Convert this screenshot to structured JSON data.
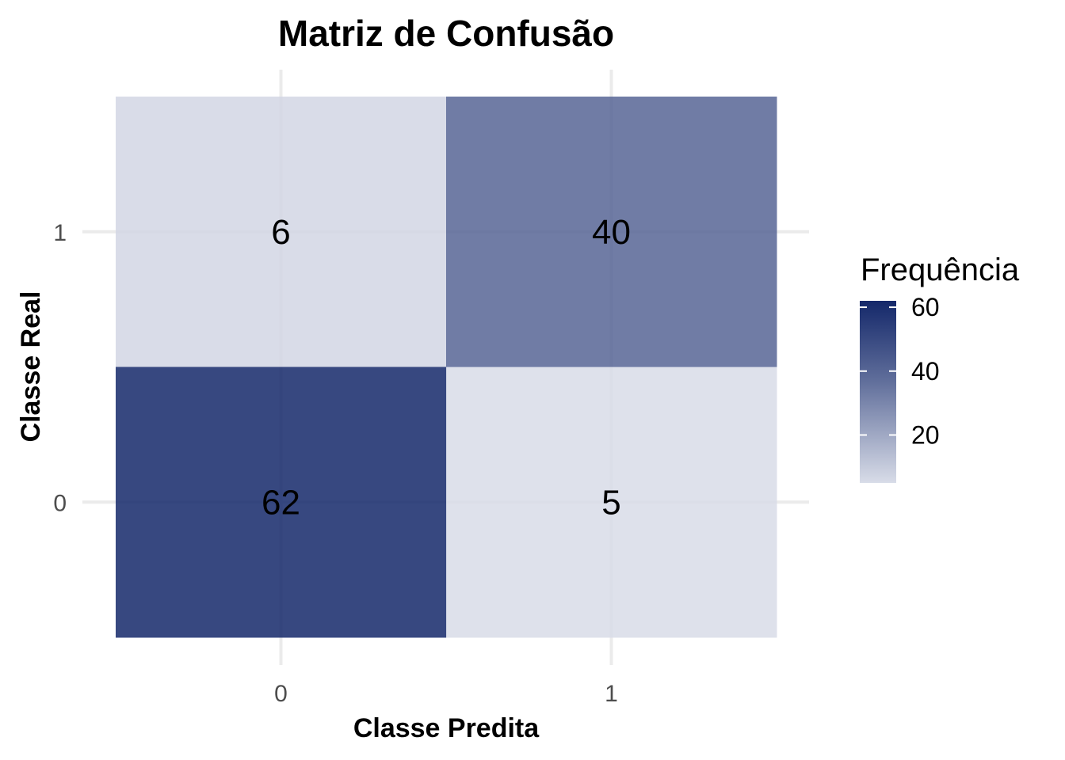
{
  "chart_data": {
    "type": "heatmap",
    "title": "Matriz de Confusão",
    "xlabel": "Classe Predita",
    "ylabel": "Classe Real",
    "x_categories": [
      "0",
      "1"
    ],
    "y_categories": [
      "0",
      "1"
    ],
    "cells": [
      {
        "x": "0",
        "y": "1",
        "value": 6
      },
      {
        "x": "1",
        "y": "1",
        "value": 40
      },
      {
        "x": "0",
        "y": "0",
        "value": 62
      },
      {
        "x": "1",
        "y": "0",
        "value": 5
      }
    ],
    "legend": {
      "title": "Frequência",
      "ticks": [
        20,
        40,
        60
      ],
      "range": [
        5,
        62
      ],
      "low_color": "#d8dce8",
      "high_color": "#14286a",
      "placement": "right"
    },
    "grid": true
  }
}
